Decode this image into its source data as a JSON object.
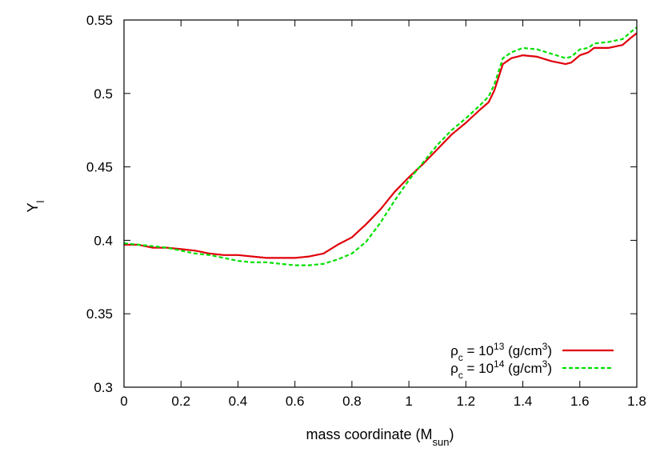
{
  "chart_data": {
    "type": "line",
    "xlabel": "mass coordinate (M",
    "xlabel_sub": "sun",
    "xlabel_suffix": ")",
    "ylabel": "Y",
    "ylabel_sub": "l",
    "xlim": [
      0,
      1.8
    ],
    "ylim": [
      0.3,
      0.55
    ],
    "xticks": [
      0,
      0.2,
      0.4,
      0.6,
      0.8,
      1,
      1.2,
      1.4,
      1.6,
      1.8
    ],
    "xtick_labels": [
      "0",
      "0.2",
      "0.4",
      "0.6",
      "0.8",
      "1",
      "1.2",
      "1.4",
      "1.6",
      "1.8"
    ],
    "yticks": [
      0.3,
      0.35,
      0.4,
      0.45,
      0.5,
      0.55
    ],
    "ytick_labels": [
      "0.3",
      "0.35",
      "0.4",
      "0.45",
      "0.5",
      "0.55"
    ],
    "grid": false,
    "legend_position": "bottom-right",
    "series": [
      {
        "name": "ρc = 10^13 (g/cm^3)",
        "legend": {
          "rho": "ρ",
          "rho_sub": "c",
          "eq": " = 10",
          "exp": "13",
          "unit_a": " (g/cm",
          "unit_exp": "3",
          "unit_b": ")"
        },
        "color": "#e0000a",
        "dash": "solid",
        "x": [
          0,
          0.05,
          0.1,
          0.15,
          0.2,
          0.25,
          0.3,
          0.35,
          0.4,
          0.45,
          0.5,
          0.55,
          0.6,
          0.65,
          0.7,
          0.75,
          0.8,
          0.85,
          0.9,
          0.95,
          1.0,
          1.05,
          1.1,
          1.15,
          1.2,
          1.25,
          1.28,
          1.3,
          1.33,
          1.36,
          1.4,
          1.45,
          1.5,
          1.55,
          1.57,
          1.6,
          1.63,
          1.65,
          1.7,
          1.75,
          1.78,
          1.8
        ],
        "values": [
          0.397,
          0.397,
          0.395,
          0.395,
          0.394,
          0.393,
          0.391,
          0.39,
          0.39,
          0.389,
          0.388,
          0.388,
          0.388,
          0.389,
          0.391,
          0.397,
          0.402,
          0.411,
          0.421,
          0.433,
          0.443,
          0.452,
          0.462,
          0.472,
          0.48,
          0.489,
          0.494,
          0.502,
          0.52,
          0.524,
          0.526,
          0.525,
          0.522,
          0.52,
          0.521,
          0.526,
          0.528,
          0.531,
          0.531,
          0.533,
          0.538,
          0.541
        ]
      },
      {
        "name": "ρc = 10^14 (g/cm^3)",
        "legend": {
          "rho": "ρ",
          "rho_sub": "c",
          "eq": " = 10",
          "exp": "14",
          "unit_a": " (g/cm",
          "unit_exp": "3",
          "unit_b": ")"
        },
        "color": "#00e000",
        "dash": "dashed",
        "x": [
          0,
          0.05,
          0.1,
          0.15,
          0.2,
          0.25,
          0.3,
          0.35,
          0.4,
          0.45,
          0.5,
          0.55,
          0.6,
          0.65,
          0.7,
          0.75,
          0.8,
          0.85,
          0.9,
          0.95,
          1.0,
          1.05,
          1.1,
          1.15,
          1.2,
          1.25,
          1.28,
          1.3,
          1.33,
          1.36,
          1.4,
          1.45,
          1.5,
          1.55,
          1.57,
          1.6,
          1.63,
          1.65,
          1.7,
          1.75,
          1.78,
          1.8
        ],
        "values": [
          0.398,
          0.397,
          0.396,
          0.395,
          0.393,
          0.391,
          0.39,
          0.388,
          0.386,
          0.385,
          0.385,
          0.384,
          0.383,
          0.383,
          0.384,
          0.387,
          0.391,
          0.399,
          0.412,
          0.427,
          0.441,
          0.453,
          0.465,
          0.475,
          0.483,
          0.492,
          0.498,
          0.506,
          0.524,
          0.528,
          0.531,
          0.53,
          0.527,
          0.524,
          0.525,
          0.53,
          0.531,
          0.534,
          0.535,
          0.537,
          0.542,
          0.545
        ]
      }
    ]
  }
}
